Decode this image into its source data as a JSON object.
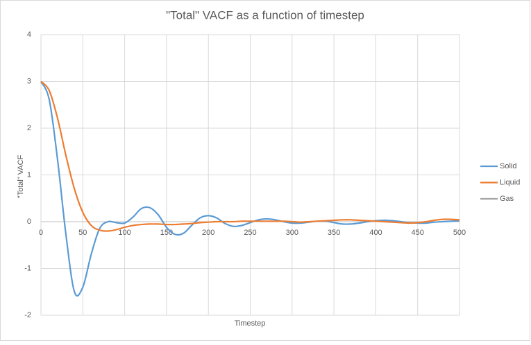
{
  "chart_data": {
    "type": "line",
    "title": "\"Total\" VACF as a function of timestep",
    "x_label": "Timestep",
    "y_label": "\"Total\" VACF",
    "x": [
      0,
      10,
      20,
      30,
      40,
      50,
      60,
      70,
      80,
      90,
      100,
      110,
      120,
      130,
      140,
      150,
      160,
      170,
      180,
      190,
      200,
      210,
      220,
      230,
      240,
      250,
      260,
      270,
      280,
      290,
      300,
      310,
      320,
      330,
      340,
      350,
      360,
      370,
      380,
      390,
      400,
      410,
      420,
      430,
      440,
      450,
      460,
      470,
      480,
      490,
      500
    ],
    "series": [
      {
        "name": "Solid",
        "color": "#5b9bd5",
        "values": [
          3.0,
          2.6,
          1.3,
          -0.3,
          -1.5,
          -1.4,
          -0.7,
          -0.15,
          0.0,
          -0.02,
          -0.03,
          0.1,
          0.28,
          0.3,
          0.15,
          -0.12,
          -0.27,
          -0.25,
          -0.08,
          0.08,
          0.13,
          0.08,
          -0.04,
          -0.1,
          -0.08,
          -0.02,
          0.04,
          0.06,
          0.04,
          0.0,
          -0.03,
          -0.03,
          -0.01,
          0.01,
          0.01,
          -0.02,
          -0.05,
          -0.05,
          -0.03,
          0.0,
          0.02,
          0.03,
          0.02,
          0.0,
          -0.02,
          -0.03,
          -0.03,
          -0.01,
          0.0,
          0.01,
          0.02
        ]
      },
      {
        "name": "Liquid",
        "color": "#ed7d31",
        "values": [
          3.0,
          2.8,
          2.2,
          1.4,
          0.7,
          0.2,
          -0.08,
          -0.18,
          -0.2,
          -0.17,
          -0.12,
          -0.08,
          -0.06,
          -0.05,
          -0.05,
          -0.06,
          -0.06,
          -0.05,
          -0.04,
          -0.02,
          -0.01,
          0.0,
          0.0,
          0.0,
          0.01,
          0.01,
          0.01,
          0.01,
          0.01,
          0.01,
          0.0,
          -0.01,
          0.0,
          0.01,
          0.02,
          0.03,
          0.04,
          0.04,
          0.03,
          0.02,
          0.01,
          0.0,
          -0.01,
          -0.02,
          -0.03,
          -0.02,
          0.0,
          0.03,
          0.05,
          0.05,
          0.04
        ]
      },
      {
        "name": "Gas",
        "color": "#a5a5a5",
        "values": [
          null,
          null,
          null,
          null,
          null,
          null,
          null,
          null,
          null,
          null,
          null,
          null,
          null,
          null,
          null,
          null,
          null,
          null,
          null,
          null,
          null,
          null,
          null,
          null,
          null,
          null,
          null,
          null,
          null,
          null,
          null,
          null,
          null,
          null,
          null,
          null,
          null,
          null,
          null,
          null,
          null,
          null,
          null,
          null,
          null,
          null,
          null,
          null,
          null,
          null,
          null
        ]
      }
    ],
    "xlim": [
      0,
      500
    ],
    "xticks": [
      0,
      50,
      100,
      150,
      200,
      250,
      300,
      350,
      400,
      450,
      500
    ],
    "ylim": [
      -2,
      4
    ],
    "yticks": [
      -2,
      -1,
      0,
      1,
      2,
      3,
      4
    ],
    "grid": true,
    "legend": "right"
  }
}
